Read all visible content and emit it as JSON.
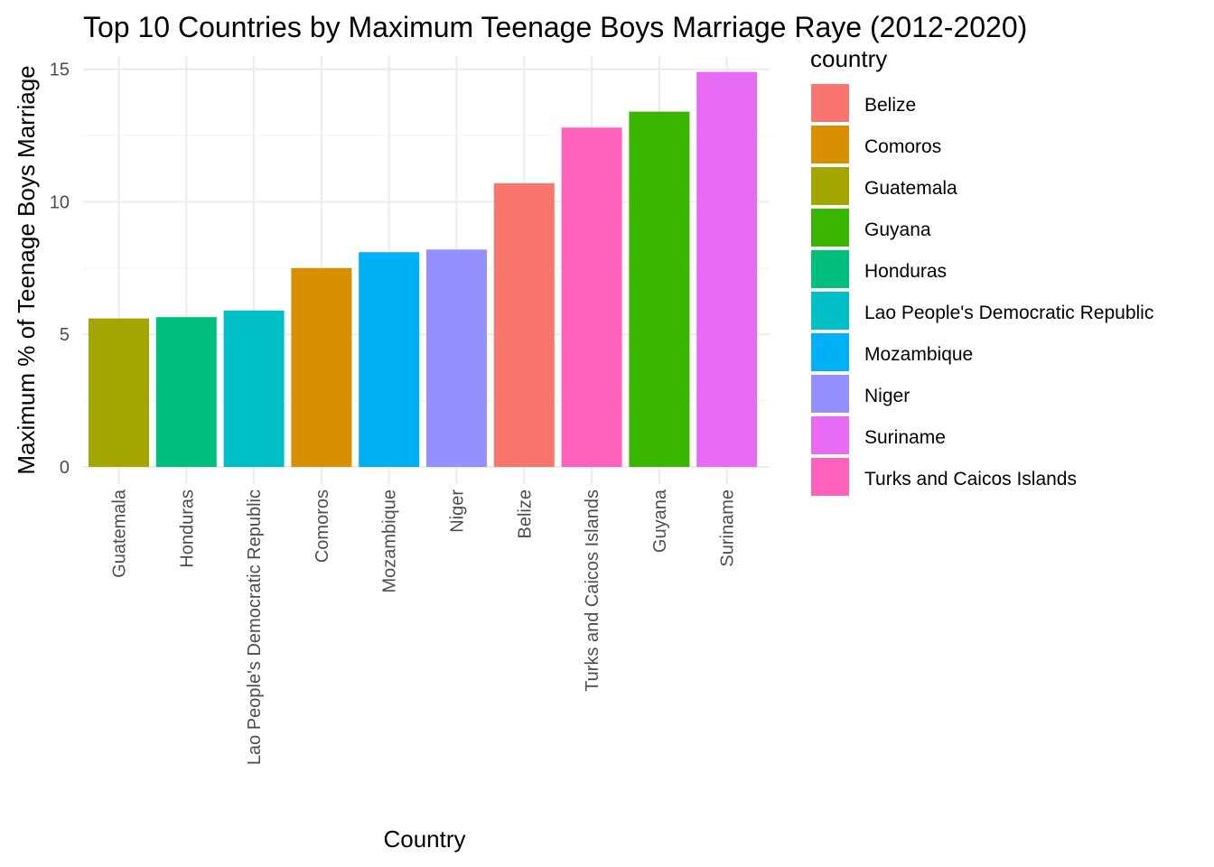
{
  "chart_data": {
    "type": "bar",
    "title": "Top 10 Countries by Maximum Teenage Boys Marriage Raye (2012-2020)",
    "xlabel": "Country",
    "ylabel": "Maximum % of Teenage Boys Marriage",
    "ylim": [
      0,
      15.5
    ],
    "yticks": [
      0,
      5,
      10,
      15
    ],
    "grid": true,
    "legend": {
      "title": "country",
      "position": "right",
      "entries": [
        {
          "label": "Belize",
          "color": "#F8766D"
        },
        {
          "label": "Comoros",
          "color": "#D89000"
        },
        {
          "label": "Guatemala",
          "color": "#A3A500"
        },
        {
          "label": "Guyana",
          "color": "#39B600"
        },
        {
          "label": "Honduras",
          "color": "#00BF7D"
        },
        {
          "label": "Lao People's Democratic Republic",
          "color": "#00BFC4"
        },
        {
          "label": "Mozambique",
          "color": "#00B0F6"
        },
        {
          "label": "Niger",
          "color": "#9590FF"
        },
        {
          "label": "Suriname",
          "color": "#E76BF3"
        },
        {
          "label": "Turks and Caicos Islands",
          "color": "#FF62BC"
        }
      ]
    },
    "categories": [
      "Guatemala",
      "Honduras",
      "Lao People's Democratic Republic",
      "Comoros",
      "Mozambique",
      "Niger",
      "Belize",
      "Turks and Caicos Islands",
      "Guyana",
      "Suriname"
    ],
    "values": [
      5.6,
      5.65,
      5.9,
      7.5,
      8.1,
      8.2,
      10.7,
      12.8,
      13.4,
      14.9
    ],
    "colors": [
      "#A3A500",
      "#00BF7D",
      "#00BFC4",
      "#D89000",
      "#00B0F6",
      "#9590FF",
      "#F8766D",
      "#FF62BC",
      "#39B600",
      "#E76BF3"
    ]
  }
}
